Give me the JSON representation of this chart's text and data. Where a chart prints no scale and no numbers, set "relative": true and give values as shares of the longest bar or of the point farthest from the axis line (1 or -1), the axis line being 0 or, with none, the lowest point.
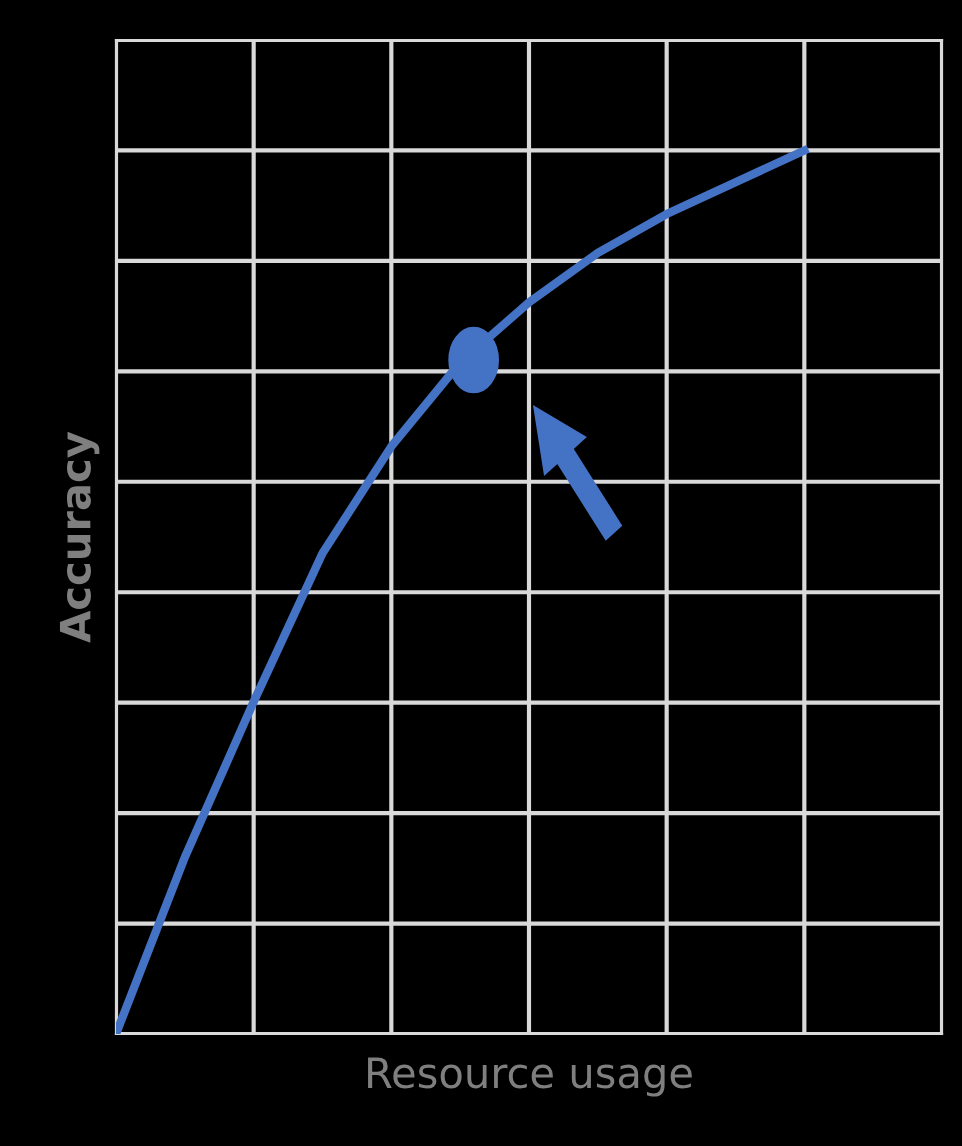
{
  "chart_data": {
    "type": "line",
    "relative": true,
    "xlabel": "Resource usage",
    "ylabel": "Accuracy",
    "categories": [
      null,
      null,
      null,
      null,
      null,
      null,
      null,
      null,
      null,
      null,
      null
    ],
    "series": [
      {
        "color": "#4472c4",
        "values": [
          0,
          0.2,
          0.376,
          0.544,
          0.665,
          0.76,
          0.828,
          0.884,
          0.928,
          0.964,
          1
        ]
      }
    ],
    "grid": true,
    "tick_labels": false
  }
}
